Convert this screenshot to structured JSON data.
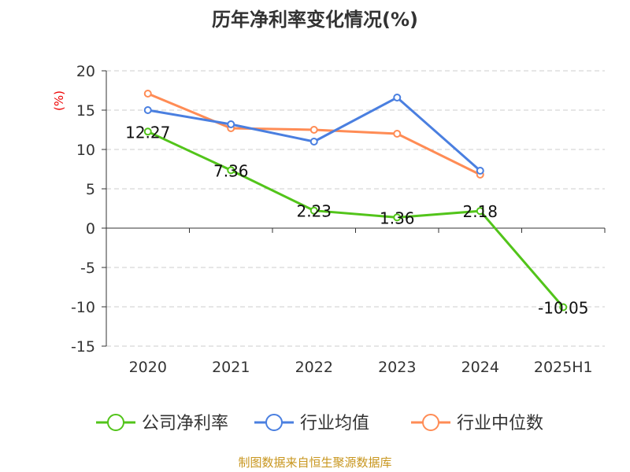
{
  "chart_data": {
    "type": "line",
    "title": "历年净利率变化情况(%)",
    "ylabel": "(%)",
    "categories": [
      "2020",
      "2021",
      "2022",
      "2023",
      "2024",
      "2025H1"
    ],
    "ylim": [
      -15,
      20
    ],
    "yticks": [
      20,
      15,
      10,
      5,
      0,
      -5,
      -10,
      -15
    ],
    "grid": true,
    "legend_position": "bottom",
    "series": [
      {
        "name": "公司净利率",
        "color": "#52c41a",
        "values": [
          12.27,
          7.36,
          2.23,
          1.36,
          2.18,
          -10.05
        ],
        "labels": [
          "12.27",
          "7.36",
          "2.23",
          "1.36",
          "2.18",
          "-10.05"
        ]
      },
      {
        "name": "行业均值",
        "color": "#4a7fe0",
        "values": [
          15.0,
          13.2,
          11.0,
          16.6,
          7.3,
          null
        ]
      },
      {
        "name": "行业中位数",
        "color": "#ff8c55",
        "values": [
          17.1,
          12.7,
          12.5,
          12.0,
          6.8,
          null
        ]
      }
    ]
  },
  "footer": "制图数据来自恒生聚源数据库"
}
